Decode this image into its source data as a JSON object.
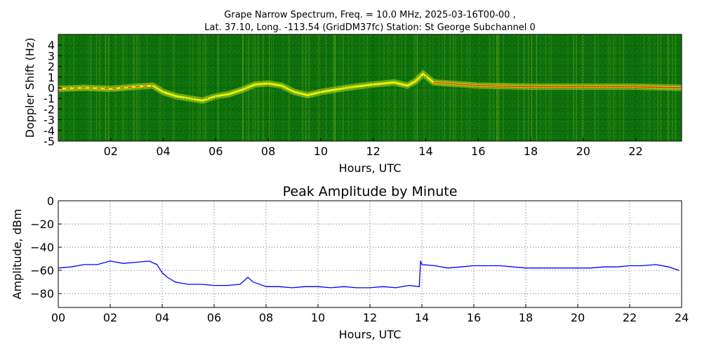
{
  "figure": {
    "title_line1": "Grape Narrow Spectrum, Freq. = 10.0 MHz, 2025-03-16T00-00 ,",
    "title_line2": "Lat.  37.10, Long. -113.54 (GridDM37fc) Station: St George Subchannel 0"
  },
  "chart_data": [
    {
      "type": "heatmap",
      "title": "",
      "xlabel": "Hours, UTC",
      "ylabel": "Doppler Shift (Hz)",
      "xlim": [
        0,
        23.75
      ],
      "ylim": [
        -5,
        5
      ],
      "x_ticks": [
        "02",
        "04",
        "06",
        "08",
        "10",
        "12",
        "14",
        "16",
        "18",
        "20",
        "22"
      ],
      "x_tick_values": [
        2,
        4,
        6,
        8,
        10,
        12,
        14,
        16,
        18,
        20,
        22
      ],
      "y_ticks": [
        "4",
        "3",
        "2",
        "1",
        "0",
        "-1",
        "-2",
        "-3",
        "-4",
        "-5"
      ],
      "y_tick_values": [
        4,
        3,
        2,
        1,
        0,
        -1,
        -2,
        -3,
        -4,
        -5
      ],
      "grid": true,
      "colors": {
        "background": "#0b6e0b",
        "trace": "#e8f000",
        "peak": "#ff2000"
      },
      "doppler_trace": [
        {
          "x": 0,
          "y": -0.1
        },
        {
          "x": 1,
          "y": 0.0
        },
        {
          "x": 2,
          "y": -0.1
        },
        {
          "x": 3,
          "y": 0.1
        },
        {
          "x": 3.6,
          "y": 0.2
        },
        {
          "x": 4,
          "y": -0.4
        },
        {
          "x": 4.5,
          "y": -0.8
        },
        {
          "x": 5,
          "y": -1.0
        },
        {
          "x": 5.5,
          "y": -1.2
        },
        {
          "x": 6,
          "y": -0.8
        },
        {
          "x": 6.5,
          "y": -0.6
        },
        {
          "x": 7,
          "y": -0.2
        },
        {
          "x": 7.5,
          "y": 0.3
        },
        {
          "x": 8,
          "y": 0.4
        },
        {
          "x": 8.5,
          "y": 0.2
        },
        {
          "x": 9,
          "y": -0.4
        },
        {
          "x": 9.5,
          "y": -0.7
        },
        {
          "x": 10,
          "y": -0.4
        },
        {
          "x": 10.5,
          "y": -0.2
        },
        {
          "x": 11,
          "y": 0.0
        },
        {
          "x": 12,
          "y": 0.3
        },
        {
          "x": 12.8,
          "y": 0.5
        },
        {
          "x": 13.3,
          "y": 0.2
        },
        {
          "x": 13.6,
          "y": 0.6
        },
        {
          "x": 13.9,
          "y": 1.3
        },
        {
          "x": 14.3,
          "y": 0.5
        },
        {
          "x": 16,
          "y": 0.2
        },
        {
          "x": 18,
          "y": 0.1
        },
        {
          "x": 20,
          "y": 0.1
        },
        {
          "x": 22,
          "y": 0.1
        },
        {
          "x": 23.75,
          "y": 0.0
        }
      ]
    },
    {
      "type": "line",
      "title": "Peak Amplitude by Minute",
      "xlabel": "Hours, UTC",
      "ylabel": "Amplitude, dBm",
      "xlim": [
        0,
        24
      ],
      "ylim": [
        -92,
        0
      ],
      "x_ticks": [
        "00",
        "02",
        "04",
        "06",
        "08",
        "10",
        "12",
        "14",
        "16",
        "18",
        "20",
        "22",
        "24"
      ],
      "x_tick_values": [
        0,
        2,
        4,
        6,
        8,
        10,
        12,
        14,
        16,
        18,
        20,
        22,
        24
      ],
      "y_ticks": [
        "0",
        "−20",
        "−40",
        "−60",
        "−80"
      ],
      "y_tick_values": [
        0,
        -20,
        -40,
        -60,
        -80
      ],
      "grid": true,
      "series": [
        {
          "color": "#0000ff",
          "x": [
            0,
            0.5,
            1,
            1.5,
            2,
            2.5,
            3,
            3.5,
            3.8,
            4,
            4.2,
            4.5,
            5,
            5.5,
            6,
            6.5,
            7,
            7.3,
            7.5,
            8,
            8.5,
            9,
            9.5,
            10,
            10.5,
            11,
            11.5,
            12,
            12.5,
            13,
            13.5,
            13.9,
            13.95,
            14,
            14.5,
            15,
            15.5,
            16,
            16.5,
            17,
            17.5,
            18,
            18.5,
            19,
            19.5,
            20,
            20.5,
            21,
            21.5,
            22,
            22.5,
            23,
            23.5,
            23.9
          ],
          "y": [
            -58,
            -57,
            -55,
            -55,
            -52,
            -54,
            -53,
            -52,
            -55,
            -62,
            -66,
            -70,
            -72,
            -72,
            -73,
            -73,
            -72,
            -66,
            -70,
            -74,
            -74,
            -75,
            -74,
            -74,
            -75,
            -74,
            -75,
            -75,
            -74,
            -75,
            -73,
            -74,
            -52,
            -55,
            -56,
            -58,
            -57,
            -56,
            -56,
            -56,
            -57,
            -58,
            -58,
            -58,
            -58,
            -58,
            -58,
            -57,
            -57,
            -56,
            -56,
            -55,
            -57,
            -60
          ]
        }
      ]
    }
  ]
}
